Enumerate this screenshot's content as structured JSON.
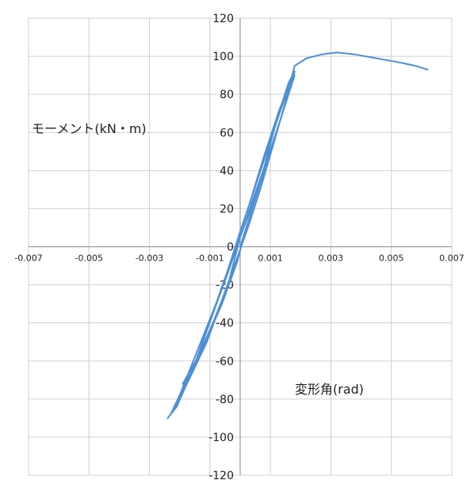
{
  "chart_data": {
    "type": "line",
    "title": "",
    "xlabel": "変形角(rad)",
    "ylabel": "モーメント(kN・m)",
    "xlim": [
      -0.007,
      0.007
    ],
    "ylim": [
      -120,
      120
    ],
    "x_ticks": [
      "-0.007",
      "-0.005",
      "-0.003",
      "-0.001",
      "0.001",
      "0.003",
      "0.005",
      "0.007"
    ],
    "y_ticks": [
      "120",
      "100",
      "80",
      "60",
      "40",
      "20",
      "0",
      "-20",
      "-40",
      "-60",
      "-80",
      "-100",
      "-120"
    ],
    "grid": true,
    "legend": "none",
    "line_color": "#4e8fd6",
    "series": [
      {
        "x": [
          0.0,
          0.0004,
          0.0008,
          0.0012,
          0.0016,
          0.0018,
          0.0013,
          0.0008,
          0.0003,
          0.0,
          -0.0004,
          -0.0008,
          -0.0012,
          -0.0016,
          -0.0019,
          -0.0014,
          -0.0009,
          -0.0004,
          0.0,
          0.0004,
          0.0009,
          0.0014,
          0.0018,
          0.0014,
          0.0009,
          0.0004,
          0.0,
          -0.0005,
          -0.001,
          -0.0015,
          -0.002,
          -0.0023,
          -0.0018,
          -0.0012,
          -0.0006,
          -0.0001,
          0.0002,
          0.0006,
          0.001,
          0.0014,
          0.0018,
          0.0013,
          0.0008,
          0.0003,
          -0.0001,
          -0.0006,
          -0.0011,
          -0.0016,
          -0.0021,
          -0.0024,
          -0.0022,
          -0.0017,
          -0.0011,
          -0.0006,
          -0.0001,
          0.0003,
          0.0007,
          0.0011,
          0.0015,
          0.0018,
          0.0022,
          0.0027,
          0.0032,
          0.0038,
          0.0045,
          0.0052,
          0.0058,
          0.0062
        ],
        "y": [
          0,
          20,
          42,
          66,
          86,
          92,
          72,
          48,
          22,
          8,
          -12,
          -30,
          -48,
          -66,
          -72,
          -58,
          -40,
          -20,
          5,
          24,
          46,
          70,
          90,
          70,
          46,
          22,
          5,
          -18,
          -38,
          -58,
          -78,
          -88,
          -72,
          -52,
          -30,
          -8,
          10,
          30,
          50,
          70,
          92,
          70,
          46,
          22,
          3,
          -22,
          -44,
          -66,
          -84,
          -90,
          -86,
          -70,
          -50,
          -28,
          -6,
          12,
          32,
          54,
          76,
          95,
          99,
          101,
          102,
          101,
          99,
          97,
          95,
          93
        ]
      }
    ]
  }
}
